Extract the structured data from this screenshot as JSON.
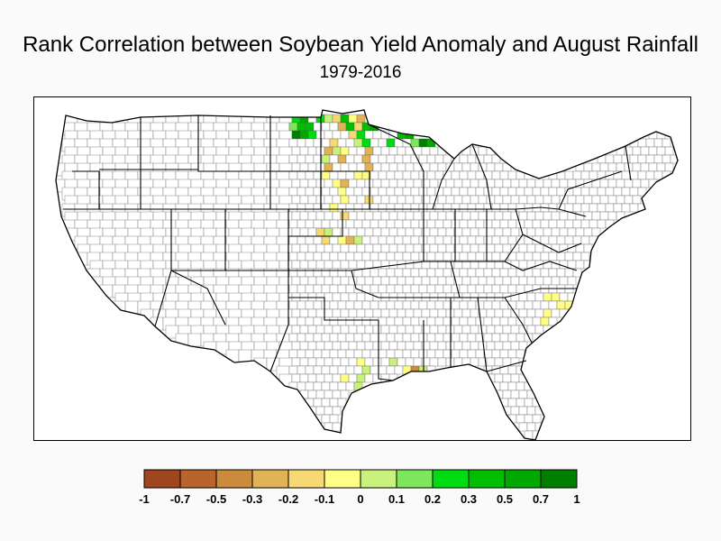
{
  "title": "Rank Correlation between Soybean Yield Anomaly and August Rainfall",
  "subtitle": "1979-2016",
  "colors": {
    "land": "#ffffff",
    "state_border": "#000000",
    "county_border": "#555555"
  },
  "legend": {
    "colors": [
      "#a0461e",
      "#b8642c",
      "#cc8a3c",
      "#e2b256",
      "#f7d873",
      "#ffff86",
      "#c8f27c",
      "#7ee65a",
      "#00dc12",
      "#00bf00",
      "#00a800",
      "#007e00"
    ],
    "tick_labels": [
      "-1",
      "-0.7",
      "-0.5",
      "-0.3",
      "-0.2",
      "-0.1",
      "0",
      "0.1",
      "0.2",
      "0.3",
      "0.5",
      "0.7",
      "1"
    ]
  }
}
